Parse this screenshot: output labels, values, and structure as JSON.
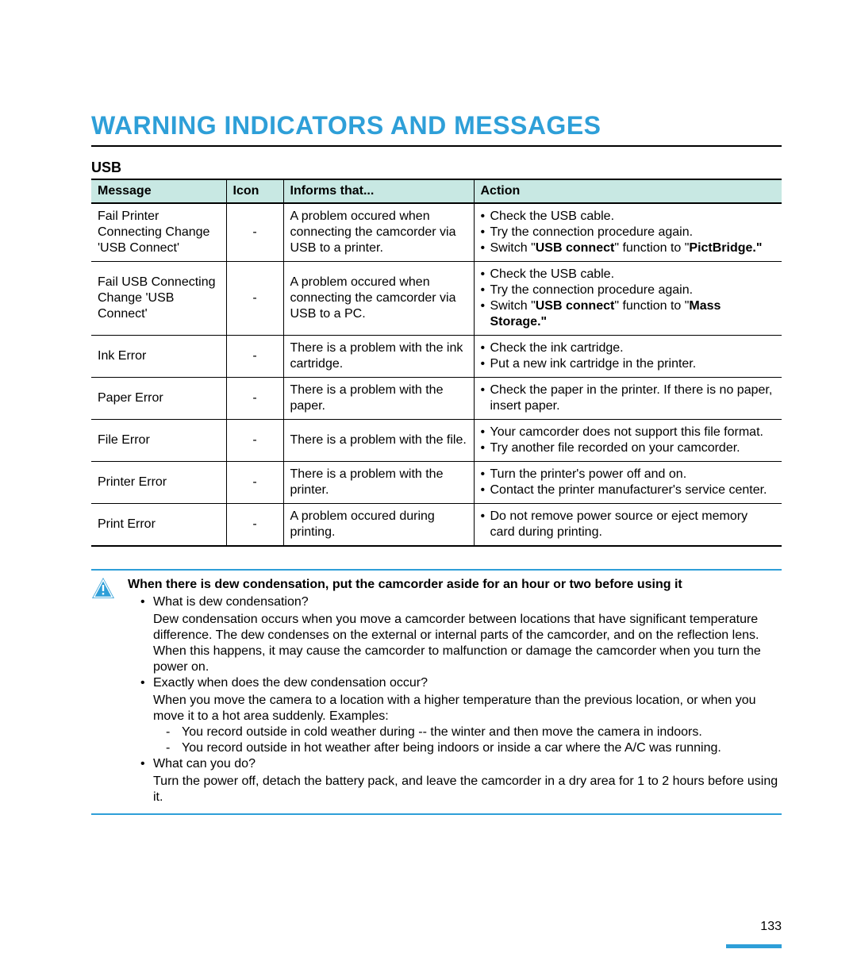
{
  "title": "WARNING INDICATORS AND MESSAGES",
  "section_heading": "USB",
  "page_number": "133",
  "table": {
    "headers": {
      "message": "Message",
      "icon": "Icon",
      "informs": "Informs that...",
      "action": "Action"
    },
    "rows": [
      {
        "message": "Fail Printer Connecting Change 'USB Connect'",
        "icon": "-",
        "informs": "A problem occured when connecting the camcorder via USB to a printer.",
        "actions": [
          {
            "pre": "Check the USB cable."
          },
          {
            "pre": "Try the connection procedure again."
          },
          {
            "pre": "Switch \"",
            "bold1": "USB connect",
            "mid": "\" function to \"",
            "bold2": "PictBridge.\""
          }
        ]
      },
      {
        "message": "Fail USB Connecting Change 'USB Connect'",
        "icon": "-",
        "informs": "A problem occured when connecting the camcorder via USB to a PC.",
        "actions": [
          {
            "pre": "Check the USB cable."
          },
          {
            "pre": "Try the connection procedure again."
          },
          {
            "pre": "Switch \"",
            "bold1": "USB connect",
            "mid": "\" function to \"",
            "bold2": "Mass Storage.\""
          }
        ]
      },
      {
        "message": "Ink Error",
        "icon": "-",
        "informs": "There is a problem with the ink cartridge.",
        "actions": [
          {
            "pre": "Check the ink cartridge."
          },
          {
            "pre": "Put a new ink cartridge in the printer."
          }
        ]
      },
      {
        "message": "Paper Error",
        "icon": "-",
        "informs": "There is a problem with the paper.",
        "actions": [
          {
            "pre": "Check the paper in the printer. If there is no paper, insert paper."
          }
        ]
      },
      {
        "message": "File Error",
        "icon": "-",
        "informs": "There is a problem with the file.",
        "actions": [
          {
            "pre": "Your camcorder does not support this file format."
          },
          {
            "pre": "Try another file recorded on your camcorder."
          }
        ]
      },
      {
        "message": "Printer Error",
        "icon": "-",
        "informs": "There is a problem with the printer.",
        "actions": [
          {
            "pre": "Turn the printer's power off and on."
          },
          {
            "pre": "Contact the printer manufacturer's service center."
          }
        ]
      },
      {
        "message": "Print Error",
        "icon": "-",
        "informs": "A problem occured during printing.",
        "actions": [
          {
            "pre": "Do not remove power source or eject memory card during printing."
          }
        ]
      }
    ]
  },
  "warning": {
    "title": "When there is dew condensation, put the camcorder aside for an hour or two before using it",
    "q1": "What is dew condensation?",
    "a1": "Dew condensation occurs when you move a camcorder between locations that have significant temperature difference. The dew condenses on the external or internal parts of the camcorder, and on the reflection lens. When this happens, it may cause the camcorder to malfunction or damage the camcorder when you turn the power on.",
    "q2": "Exactly when does the dew condensation occur?",
    "a2": "When you move the camera to a location with a higher temperature than the previous location, or when you move it to a hot area suddenly. Examples:",
    "ex1": "You record outside in cold weather during -- the winter and then move the camera in indoors.",
    "ex2": "You record outside in hot weather after being indoors or inside a car where the A/C was running.",
    "q3": "What can you do?",
    "a3": "Turn the power off, detach the battery pack, and leave the camcorder in a dry area for 1 to 2 hours before using it."
  },
  "colors": {
    "accent": "#2e9fd8",
    "header_bg": "#c8e8e3"
  }
}
